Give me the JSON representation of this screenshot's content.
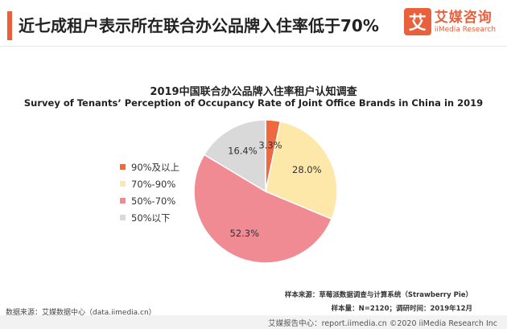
{
  "header": {
    "title": "近七成租户表示所在联合办公品牌入住率低于70%",
    "brand_cn": "艾媒咨询",
    "brand_en": "iiMedia Research",
    "brand_mark": "艾"
  },
  "chart_data": {
    "type": "pie",
    "title": "2019中国联合办公品牌入住率租户认知调查",
    "subtitle": "Survey of Tenants’  Perception of Occupancy Rate of Joint Office Brands in China in 2019",
    "categories": [
      "90%及以上",
      "70%-90%",
      "50%-70%",
      "50%以下"
    ],
    "values": [
      3.3,
      28.0,
      52.3,
      16.4
    ],
    "value_labels": [
      "3.3%",
      "28.0%",
      "52.3%",
      "16.4%"
    ],
    "colors": [
      "#ee6840",
      "#fde8a9",
      "#f08b94",
      "#d9d9d9"
    ],
    "start_angle_deg": 0,
    "direction": "clockwise",
    "legend_position": "left"
  },
  "footer": {
    "sample_source": "样本来源：草莓派数据调查与计算系统（Strawberry Pie）",
    "sample_size": "样本量：N=2120；调研时间：2019年12月",
    "data_source": "数据来源：艾媒数据中心（data.iimedia.cn）",
    "copyright": "艾媒报告中心：report.iimedia.cn ©2020  iiMedia Research  Inc"
  }
}
